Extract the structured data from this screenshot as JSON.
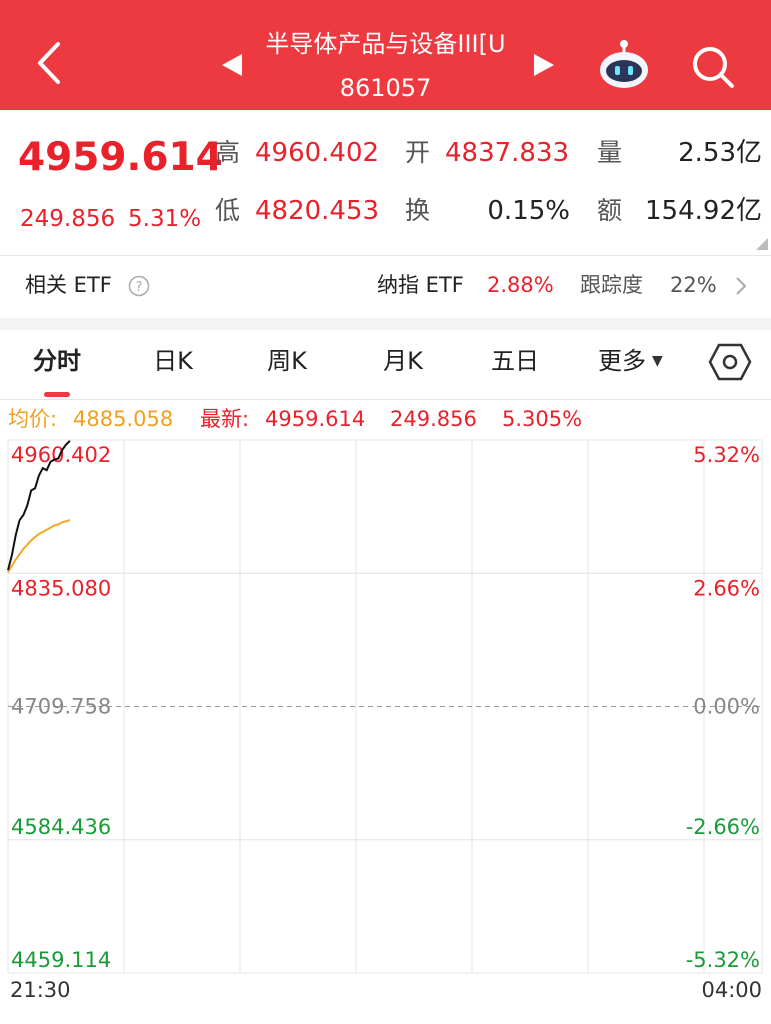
{
  "header": {
    "title": "半导体产品与设备III[U",
    "code": "861057"
  },
  "quote": {
    "price": "4959.614",
    "change": "249.856",
    "change_pct": "5.31%",
    "stats": [
      {
        "label": "高",
        "value": "4960.402"
      },
      {
        "label": "开",
        "value": "4837.833"
      },
      {
        "label": "量",
        "value": "2.53亿"
      },
      {
        "label": "低",
        "value": "4820.453"
      },
      {
        "label": "换",
        "value": "0.15%"
      },
      {
        "label": "额",
        "value": "154.92亿"
      }
    ]
  },
  "etf": {
    "label": "相关 ETF",
    "name": "纳指 ETF",
    "change": "2.88%",
    "tracking_label": "跟踪度",
    "tracking": "22%"
  },
  "tabs": [
    "分时",
    "日K",
    "周K",
    "月K",
    "五日",
    "更多"
  ],
  "info": {
    "avg_label": "均价:",
    "avg": "4885.058",
    "latest_label": "最新:",
    "latest": "4959.614",
    "change": "249.856",
    "change_pct": "5.305%"
  },
  "chart_data": {
    "type": "line",
    "x": [
      0,
      2,
      4,
      6,
      8,
      10,
      12,
      14,
      16,
      18,
      20,
      22,
      24,
      26,
      28,
      30,
      32
    ],
    "series": [
      {
        "name": "最新",
        "color": "#111111",
        "values": [
          4838,
          4852,
          4871,
          4885,
          4890,
          4899,
          4913,
          4915,
          4927,
          4934,
          4932,
          4940,
          4942,
          4943,
          4951,
          4956,
          4959.614
        ]
      },
      {
        "name": "均价",
        "color": "#f5a623",
        "values": [
          4836,
          4842,
          4848,
          4853,
          4858,
          4862,
          4866,
          4869,
          4872,
          4874,
          4876,
          4878,
          4880,
          4881,
          4883,
          4884,
          4885.058
        ]
      }
    ],
    "xlim": [
      0,
      390
    ],
    "xticks": [
      {
        "value": 0,
        "label": "21:30"
      },
      {
        "value": 390,
        "label": "04:00"
      }
    ],
    "ylim": [
      4459.114,
      4960.402
    ],
    "yticks": [
      4960.402,
      {
        "value": 4835.08,
        "label": "4835.080"
      },
      4709.758,
      4584.436,
      4459.114
    ],
    "y2lim": [
      -5.32,
      5.32
    ],
    "y2ticks": [
      {
        "value": 5.32,
        "label": "5.32%"
      },
      {
        "value": 2.66,
        "label": "2.66%"
      },
      {
        "value": 0,
        "label": "0.00%"
      },
      {
        "value": -2.66,
        "label": "-2.66%"
      },
      {
        "value": -5.32,
        "label": "-5.32%"
      }
    ],
    "grid": true
  }
}
